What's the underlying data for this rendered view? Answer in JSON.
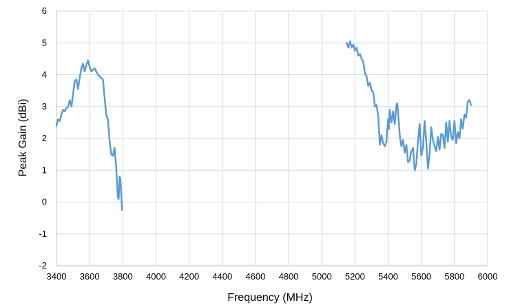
{
  "chart_data": {
    "type": "line",
    "title": "",
    "xlabel": "Frequency (MHz)",
    "ylabel": "Peak Gain (dBi)",
    "xlim": [
      3400,
      6000
    ],
    "ylim": [
      -2,
      6
    ],
    "xticks": [
      3400,
      3600,
      3800,
      4000,
      4200,
      4400,
      4600,
      4800,
      5000,
      5200,
      5400,
      5600,
      5800,
      6000
    ],
    "yticks": [
      -2,
      -1,
      0,
      1,
      2,
      3,
      4,
      5,
      6
    ],
    "grid": true,
    "legend": "none",
    "colors": {
      "series": "#5b9bd5",
      "grid": "#d9d9d9",
      "axis": "#bfbfbf"
    },
    "series": [
      {
        "values": [
          [
            3400,
            2.4
          ],
          [
            3410,
            2.6
          ],
          [
            3420,
            2.55
          ],
          [
            3430,
            2.75
          ],
          [
            3440,
            2.9
          ],
          [
            3450,
            2.85
          ],
          [
            3460,
            2.95
          ],
          [
            3470,
            3.0
          ],
          [
            3480,
            3.2
          ],
          [
            3490,
            3.0
          ],
          [
            3500,
            3.4
          ],
          [
            3510,
            3.8
          ],
          [
            3520,
            3.85
          ],
          [
            3530,
            3.55
          ],
          [
            3540,
            3.9
          ],
          [
            3550,
            4.2
          ],
          [
            3560,
            4.35
          ],
          [
            3570,
            4.1
          ],
          [
            3580,
            4.3
          ],
          [
            3590,
            4.45
          ],
          [
            3600,
            4.25
          ],
          [
            3610,
            4.1
          ],
          [
            3620,
            4.15
          ],
          [
            3630,
            4.2
          ],
          [
            3640,
            4.1
          ],
          [
            3650,
            4.0
          ],
          [
            3660,
            3.95
          ],
          [
            3670,
            3.9
          ],
          [
            3680,
            3.85
          ],
          [
            3690,
            3.3
          ],
          [
            3700,
            2.75
          ],
          [
            3710,
            2.6
          ],
          [
            3720,
            1.95
          ],
          [
            3730,
            1.5
          ],
          [
            3740,
            1.45
          ],
          [
            3750,
            1.7
          ],
          [
            3760,
            1.1
          ],
          [
            3765,
            0.6
          ],
          [
            3770,
            0.15
          ],
          [
            3775,
            0.1
          ],
          [
            3780,
            0.8
          ],
          [
            3785,
            0.75
          ],
          [
            3790,
            0.3
          ],
          [
            3795,
            -0.25
          ]
        ]
      },
      {
        "values": [
          [
            5150,
            5.0
          ],
          [
            5160,
            4.85
          ],
          [
            5170,
            5.05
          ],
          [
            5180,
            4.85
          ],
          [
            5190,
            4.95
          ],
          [
            5200,
            4.75
          ],
          [
            5210,
            4.85
          ],
          [
            5220,
            4.6
          ],
          [
            5230,
            4.65
          ],
          [
            5240,
            4.5
          ],
          [
            5250,
            4.4
          ],
          [
            5260,
            4.05
          ],
          [
            5270,
            3.95
          ],
          [
            5280,
            3.65
          ],
          [
            5290,
            3.75
          ],
          [
            5300,
            3.5
          ],
          [
            5310,
            3.45
          ],
          [
            5320,
            3.0
          ],
          [
            5330,
            3.05
          ],
          [
            5340,
            2.7
          ],
          [
            5350,
            1.8
          ],
          [
            5360,
            2.1
          ],
          [
            5370,
            1.85
          ],
          [
            5380,
            1.75
          ],
          [
            5390,
            1.9
          ],
          [
            5400,
            2.6
          ],
          [
            5405,
            2.3
          ],
          [
            5410,
            2.9
          ],
          [
            5420,
            2.5
          ],
          [
            5430,
            2.85
          ],
          [
            5440,
            2.45
          ],
          [
            5450,
            3.05
          ],
          [
            5455,
            3.1
          ],
          [
            5460,
            2.8
          ],
          [
            5470,
            2.1
          ],
          [
            5480,
            1.75
          ],
          [
            5490,
            1.95
          ],
          [
            5500,
            1.55
          ],
          [
            5510,
            1.8
          ],
          [
            5520,
            1.25
          ],
          [
            5530,
            1.3
          ],
          [
            5540,
            1.6
          ],
          [
            5550,
            1.7
          ],
          [
            5560,
            1.0
          ],
          [
            5570,
            1.2
          ],
          [
            5580,
            1.95
          ],
          [
            5590,
            2.45
          ],
          [
            5600,
            1.45
          ],
          [
            5610,
            1.7
          ],
          [
            5620,
            2.55
          ],
          [
            5630,
            1.9
          ],
          [
            5640,
            1.05
          ],
          [
            5650,
            1.5
          ],
          [
            5660,
            2.35
          ],
          [
            5670,
            1.95
          ],
          [
            5680,
            1.75
          ],
          [
            5690,
            1.6
          ],
          [
            5700,
            2.05
          ],
          [
            5710,
            1.65
          ],
          [
            5720,
            2.15
          ],
          [
            5730,
            2.1
          ],
          [
            5740,
            1.7
          ],
          [
            5750,
            2.5
          ],
          [
            5760,
            1.9
          ],
          [
            5770,
            2.55
          ],
          [
            5780,
            2.05
          ],
          [
            5790,
            1.95
          ],
          [
            5800,
            2.55
          ],
          [
            5810,
            1.85
          ],
          [
            5820,
            2.2
          ],
          [
            5830,
            2.0
          ],
          [
            5840,
            2.6
          ],
          [
            5850,
            2.3
          ],
          [
            5860,
            2.75
          ],
          [
            5870,
            2.65
          ],
          [
            5880,
            3.15
          ],
          [
            5890,
            3.2
          ],
          [
            5900,
            3.05
          ]
        ]
      }
    ]
  }
}
